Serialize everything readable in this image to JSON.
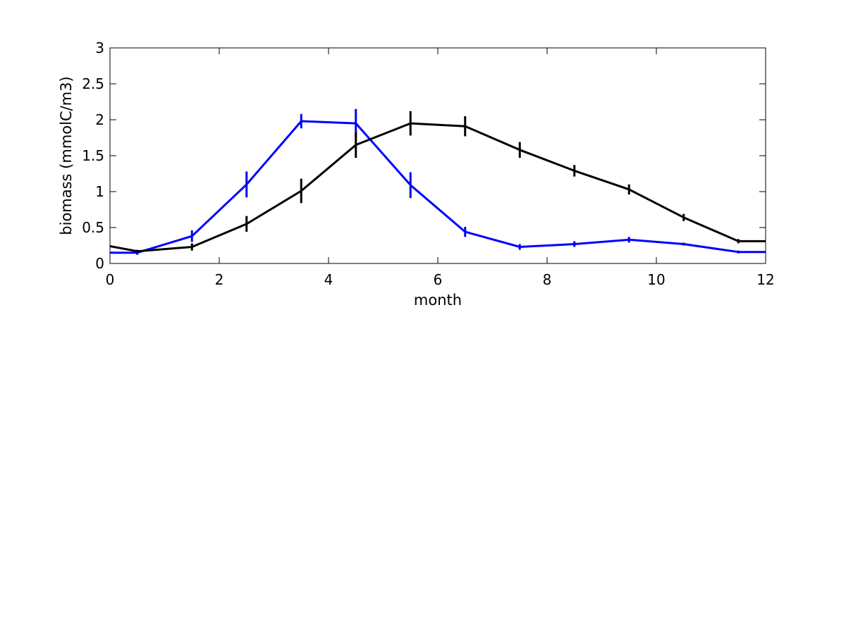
{
  "chart_data": {
    "type": "line",
    "title": "",
    "xlabel": "month",
    "ylabel": "biomass (mmolC/m3)",
    "xlim": [
      0,
      12
    ],
    "ylim": [
      0,
      3
    ],
    "xticks": [
      0,
      2,
      4,
      6,
      8,
      10,
      12
    ],
    "yticks": [
      0,
      0.5,
      1,
      1.5,
      2,
      2.5,
      3
    ],
    "xtick_labels": [
      "0",
      "2",
      "4",
      "6",
      "8",
      "10",
      "12"
    ],
    "ytick_labels": [
      "0",
      "0.5",
      "1",
      "1.5",
      "2",
      "2.5",
      "3"
    ],
    "grid": false,
    "legend": "none",
    "series": [
      {
        "color": "#0000ff",
        "x": [
          0,
          0.5,
          1.5,
          2.5,
          3.5,
          4.5,
          5.5,
          6.5,
          7.5,
          8.5,
          9.5,
          10.5,
          11.5,
          12
        ],
        "y": [
          0.15,
          0.15,
          0.38,
          1.1,
          1.98,
          1.95,
          1.09,
          0.44,
          0.23,
          0.27,
          0.33,
          0.27,
          0.16,
          0.16
        ],
        "err": [
          null,
          0.03,
          0.08,
          0.18,
          0.1,
          0.2,
          0.18,
          0.07,
          0.04,
          0.04,
          0.04,
          0.02,
          0.02,
          null
        ]
      },
      {
        "color": "#000000",
        "x": [
          0,
          0.5,
          1.5,
          2.5,
          3.5,
          4.5,
          5.5,
          6.5,
          7.5,
          8.5,
          9.5,
          10.5,
          11.5,
          12
        ],
        "y": [
          0.24,
          0.17,
          0.23,
          0.55,
          1.01,
          1.65,
          1.95,
          1.91,
          1.58,
          1.29,
          1.03,
          0.64,
          0.31,
          0.31
        ],
        "err": [
          null,
          0.02,
          0.05,
          0.11,
          0.17,
          0.18,
          0.17,
          0.14,
          0.11,
          0.08,
          0.07,
          0.05,
          0.03,
          null
        ]
      }
    ]
  }
}
